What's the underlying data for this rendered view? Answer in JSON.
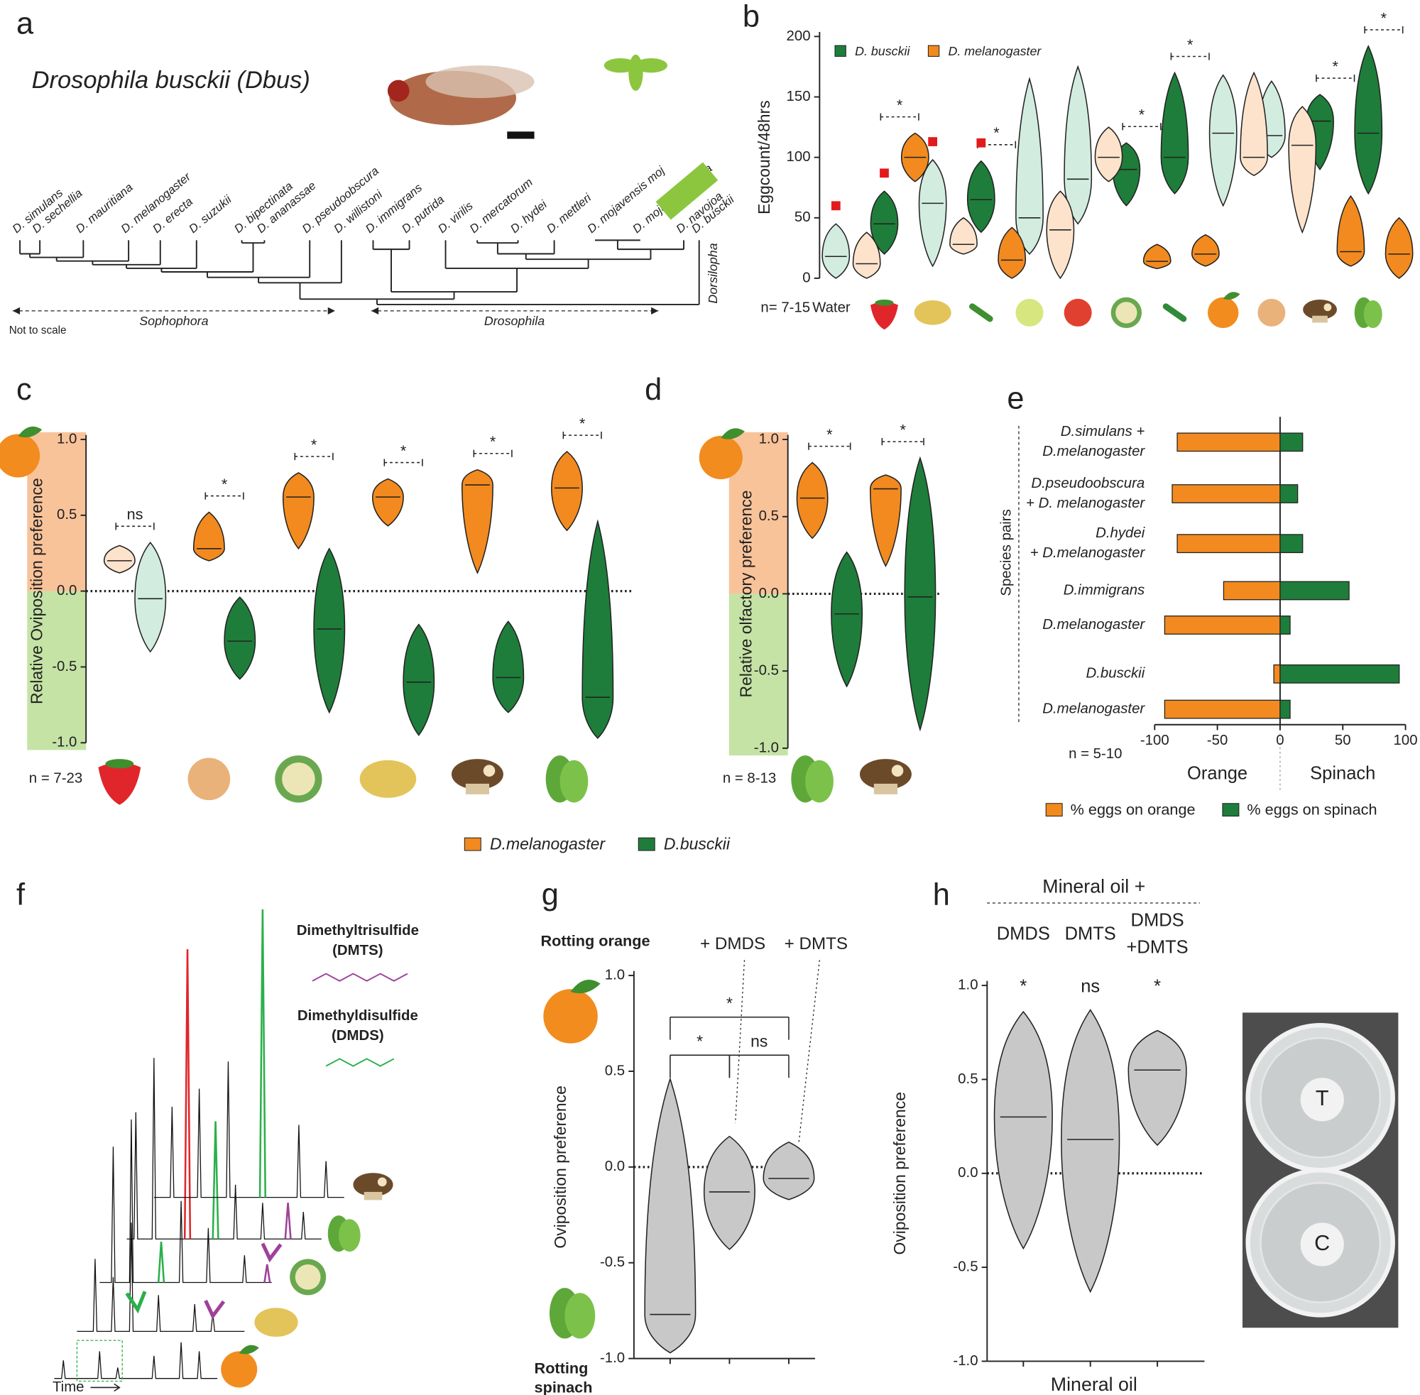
{
  "panel_labels": [
    "a",
    "b",
    "c",
    "d",
    "e",
    "f",
    "g",
    "h"
  ],
  "phylogeny": {
    "title": "Drosophila busckii (Dbus)",
    "species": [
      "D. simulans",
      "D. sechellia",
      "D. mauritiana",
      "D. melanogaster",
      "D. erecta",
      "D. suzukii",
      "D. bipectinata",
      "D. ananassae",
      "D. pseudoobscura",
      "D. willistoni",
      "D. immigrans",
      "D. putrida",
      "D. virilis",
      "D. mercatorum",
      "D. hydei",
      "D. mettleri",
      "D. mojavensis moj",
      "D. mojavensis baja",
      "D. navojoa",
      "D. busckii"
    ],
    "clades": [
      "Sophophora",
      "Drosophila",
      "Dorsilopha"
    ],
    "note": "Not to scale",
    "highlight_color": "#8cc63f"
  },
  "chart_data": [
    {
      "type": "violin",
      "ylabel": "Eggcount/48hrs",
      "note": "n= 7-15",
      "ylim": [
        0,
        200
      ],
      "yticks": [
        0,
        50,
        100,
        150,
        200
      ],
      "categories": [
        "Water",
        null,
        null,
        null,
        null,
        null,
        null,
        null,
        null,
        null,
        null,
        null
      ],
      "series": [
        {
          "name": "D. busckii",
          "color": "#1e7d3a",
          "colors": [
            "#d3ece0",
            "#1e7d3a",
            "#d3ece0",
            "#1e7d3a",
            "#d3ece0",
            "#d3ece0",
            "#1e7d3a",
            "#1e7d3a",
            "#d3ece0",
            "#d3ece0",
            "#1e7d3a",
            "#1e7d3a"
          ],
          "min": [
            0,
            20,
            10,
            38,
            20,
            45,
            60,
            70,
            60,
            100,
            90,
            70
          ],
          "median": [
            18,
            45,
            62,
            65,
            50,
            82,
            90,
            100,
            120,
            118,
            130,
            120
          ],
          "max": [
            45,
            72,
            98,
            97,
            165,
            175,
            112,
            170,
            168,
            163,
            152,
            192
          ]
        },
        {
          "name": "D. melanogaster",
          "color": "#f28a1f",
          "colors": [
            "#fde3cc",
            "#f28a1f",
            "#fde3cc",
            "#f28a1f",
            "#fde3cc",
            "#fde3cc",
            "#f28a1f",
            "#f28a1f",
            "#fde3cc",
            "#fde3cc",
            "#f28a1f",
            "#f28a1f"
          ],
          "min": [
            0,
            80,
            20,
            0,
            0,
            80,
            8,
            10,
            85,
            38,
            10,
            0
          ],
          "median": [
            12,
            100,
            28,
            15,
            40,
            100,
            14,
            20,
            100,
            110,
            22,
            20
          ],
          "max": [
            38,
            120,
            50,
            42,
            72,
            125,
            28,
            36,
            170,
            142,
            68,
            50
          ]
        }
      ],
      "significance": [
        null,
        "*",
        null,
        "*",
        null,
        null,
        "*",
        "*",
        null,
        null,
        "*",
        "*"
      ],
      "flags": [
        true,
        true,
        true,
        true,
        false,
        false,
        false,
        false,
        false,
        false,
        false,
        false
      ],
      "flag_color": "#e31a1c"
    },
    {
      "type": "violin",
      "ylabel": "Relative Oviposition preference",
      "note": "n = 7-23",
      "ylim": [
        -1,
        1
      ],
      "yticks": [
        {
          "value": -1,
          "label": "-1.0"
        },
        -0.5,
        {
          "value": 0,
          "label": "0.0"
        },
        0.5,
        {
          "value": 1,
          "label": "1.0"
        }
      ],
      "bands": [
        "#f9c39a",
        "#c5e3a5"
      ],
      "zero_line": true,
      "series": [
        {
          "name": "D.melanogaster",
          "color": "#f28a1f",
          "colors": [
            "#fde3cc",
            "#f28a1f",
            "#f28a1f",
            "#f28a1f",
            "#f28a1f",
            "#f28a1f"
          ],
          "min": [
            0.12,
            0.2,
            0.28,
            0.43,
            0.12,
            0.4
          ],
          "median": [
            0.2,
            0.28,
            0.62,
            0.62,
            0.7,
            0.68
          ],
          "max": [
            0.3,
            0.52,
            0.78,
            0.74,
            0.8,
            0.92
          ]
        },
        {
          "name": "D.busckii",
          "color": "#1e7d3a",
          "colors": [
            "#d3ece0",
            "#1e7d3a",
            "#1e7d3a",
            "#1e7d3a",
            "#1e7d3a",
            "#1e7d3a"
          ],
          "min": [
            -0.4,
            -0.58,
            -0.8,
            -0.95,
            -0.8,
            -0.97
          ],
          "median": [
            -0.05,
            -0.33,
            -0.25,
            -0.6,
            -0.57,
            -0.7
          ],
          "max": [
            0.32,
            -0.04,
            0.28,
            -0.22,
            -0.2,
            0.46
          ]
        }
      ],
      "significance": [
        "ns",
        "*",
        "*",
        "*",
        "*",
        "*"
      ]
    },
    {
      "type": "violin",
      "ylabel": "Relative olfactory preference",
      "note": "n = 8-13",
      "ylim": [
        -1,
        1
      ],
      "yticks": [
        {
          "value": -1,
          "label": "-1.0"
        },
        -0.5,
        {
          "value": 0,
          "label": "0.0"
        },
        0.5,
        {
          "value": 1,
          "label": "1.0"
        }
      ],
      "bands": [
        "#f9c39a",
        "#c5e3a5"
      ],
      "zero_line": true,
      "series": [
        {
          "name": "D.melanogaster",
          "color": "#f28a1f",
          "min": [
            0.36,
            0.18
          ],
          "median": [
            0.62,
            0.68
          ],
          "max": [
            0.85,
            0.77
          ]
        },
        {
          "name": "D.busckii",
          "color": "#1e7d3a",
          "min": [
            -0.6,
            -0.88
          ],
          "median": [
            -0.13,
            -0.02
          ],
          "max": [
            0.27,
            0.88
          ]
        }
      ],
      "significance": [
        "*",
        "*"
      ]
    },
    {
      "type": "hbar",
      "ylabel": "Species pairs",
      "note": "n = 5-10",
      "xlabels": [
        "Orange",
        "Spinach"
      ],
      "xlim": [
        -100,
        100
      ],
      "xticks": [
        -100,
        -50,
        0,
        50,
        100
      ],
      "categories": [
        [
          "D.simulans +",
          "D.melanogaster"
        ],
        [
          "D.pseudoobscura",
          "+ D. melanogaster"
        ],
        [
          "D.hydei",
          "+ D.melanogaster"
        ],
        [
          "D.immigrans"
        ],
        [
          "D.melanogaster"
        ],
        [
          "D.busckii"
        ],
        [
          "D.melanogaster"
        ]
      ],
      "series": [
        {
          "name": "% eggs on orange",
          "color": "#f28a1f",
          "values": [
            -82,
            -86,
            -82,
            -45,
            -92,
            -5,
            -92
          ]
        },
        {
          "name": "% eggs on spinach",
          "color": "#1e7d3a",
          "values": [
            18,
            14,
            18,
            55,
            8,
            95,
            8
          ]
        }
      ]
    },
    {
      "type": "violin",
      "ylabel": "Oviposition preference",
      "ylim": [
        -1,
        1
      ],
      "yticks": [
        {
          "value": -1,
          "label": "-1.0"
        },
        -0.5,
        {
          "value": 0,
          "label": "0.0"
        },
        0.5,
        {
          "value": 1,
          "label": "1.0"
        }
      ],
      "zero_line": true,
      "pos_label": "Rotting orange",
      "neg_label": [
        "Rotting",
        "spinach"
      ],
      "top_labels": [
        "+ DMDS",
        "+ DMTS"
      ],
      "series": [
        {
          "color": "#c8c8c8",
          "min": [
            -0.97,
            -0.43,
            -0.17
          ],
          "median": [
            -0.77,
            -0.13,
            -0.06
          ],
          "max": [
            0.46,
            0.16,
            0.13
          ]
        }
      ],
      "comparisons": [
        {
          "pair": [
            0,
            2
          ],
          "label": "*"
        },
        {
          "pair": [
            0,
            1
          ],
          "label": "*"
        },
        {
          "pair": [
            1,
            2
          ],
          "label": "ns"
        }
      ]
    },
    {
      "type": "violin",
      "ylabel": "Oviposition preference",
      "header": "Mineral oil +",
      "xlabel": "Mineral oil",
      "ylim": [
        -1,
        1
      ],
      "yticks": [
        {
          "value": -1,
          "label": "-1.0"
        },
        -0.5,
        {
          "value": 0,
          "label": "0.0"
        },
        0.5,
        {
          "value": 1,
          "label": "1.0"
        }
      ],
      "zero_line": true,
      "categories": [
        [
          "DMDS"
        ],
        [
          "DMTS"
        ],
        [
          "DMDS",
          "+DMTS"
        ]
      ],
      "series": [
        {
          "color": "#c8c8c8",
          "min": [
            -0.4,
            -0.63,
            0.15
          ],
          "median": [
            0.3,
            0.18,
            0.55
          ],
          "max": [
            0.86,
            0.87,
            0.76
          ]
        }
      ],
      "significance": [
        "*",
        "ns",
        "*"
      ]
    }
  ],
  "chromatogram": {
    "compounds": [
      {
        "name": "Dimethyltrisulfide",
        "abbr": "(DMTS)",
        "color": "#a0409a"
      },
      {
        "name": "Dimethyldisulfide",
        "abbr": "(DMDS)",
        "color": "#2bb04a"
      }
    ],
    "xlabel": "Time"
  },
  "photo_labels": [
    "T",
    "C"
  ]
}
